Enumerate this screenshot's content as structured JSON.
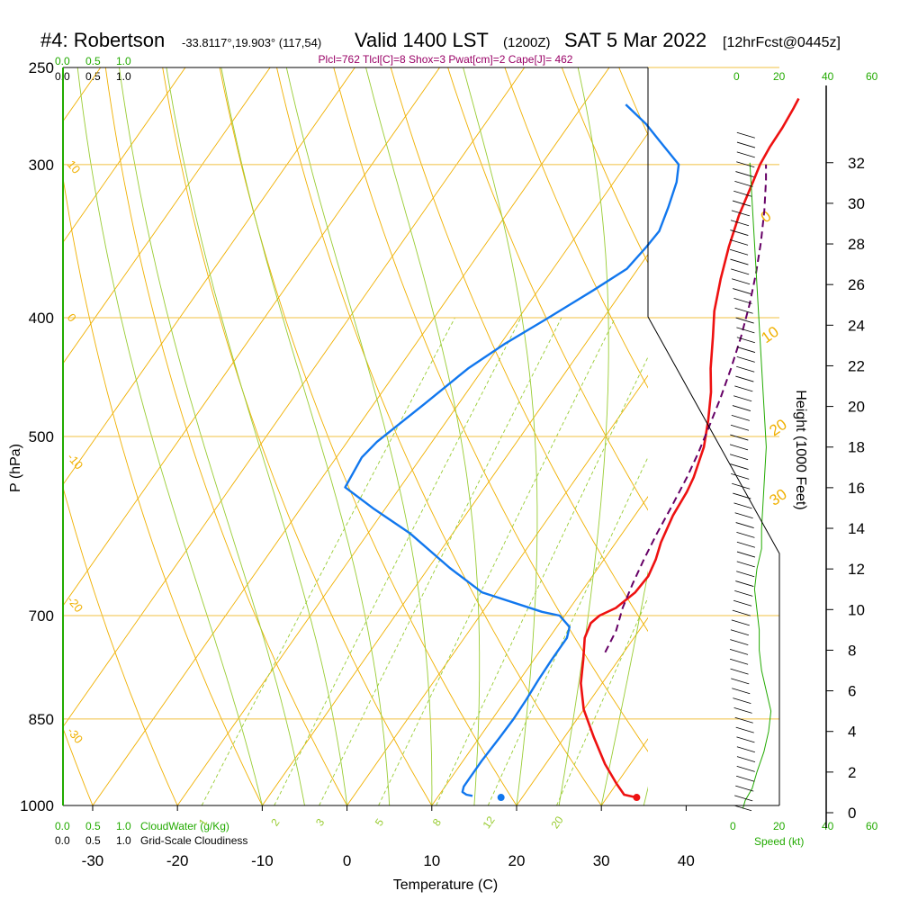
{
  "header": {
    "station": "#4: Robertson",
    "coords": "-33.8117°,19.903° (117,54)",
    "valid": "Valid 1400 LST",
    "zulu": "(1200Z)",
    "date": "SAT 5 Mar 2022",
    "forecast": "[12hrFcst@0445z]",
    "indices": "Plcl=762 Tlcl[C]=8 Shox=3 Pwat[cm]=2 Cape[J]= 462"
  },
  "scale_labels": {
    "cloudwater": [
      "0.0",
      "0.5",
      "1.0"
    ],
    "cloudiness": [
      "0.0",
      "0.5",
      "1.0"
    ],
    "cloudwater_caption": "CloudWater (g/Kg)",
    "cloudiness_caption": "Grid-Scale Cloudiness",
    "speed_ticks": [
      "0",
      "20",
      "40",
      "60"
    ],
    "speed_caption": "Speed (kt)"
  },
  "colors": {
    "isobar": "#f0c040",
    "dry_adiabat": "#f0b000",
    "moist_adiabat": "#99cc33",
    "mixing_ratio": "#99cc33",
    "temperature": "#ee1111",
    "dewpoint": "#1177ee",
    "parcel": "#660066",
    "indices": "#990066",
    "green_label": "#22aa00"
  },
  "chart_data": {
    "type": "line",
    "subtype": "skew-t log-p sounding",
    "xlabel": "Temperature (C)",
    "ylabel": "P (hPa)",
    "y2label": "Height (1000 Feet)",
    "x_ticks": [
      -30,
      -20,
      -10,
      0,
      10,
      20,
      30,
      40
    ],
    "p_ticks": [
      250,
      300,
      400,
      500,
      700,
      850,
      1000
    ],
    "height_ticks": [
      0,
      2,
      4,
      6,
      8,
      10,
      12,
      14,
      16,
      18,
      20,
      22,
      24,
      26,
      28,
      30,
      32
    ],
    "xlim": [
      -33.5,
      35.5
    ],
    "plim": [
      1000,
      250
    ],
    "series": [
      {
        "key": "temperature",
        "points": [
          [
            33.5,
            985
          ],
          [
            31.8,
            980
          ],
          [
            30,
            960
          ],
          [
            27,
            925
          ],
          [
            23.5,
            880
          ],
          [
            20,
            835
          ],
          [
            17.5,
            795
          ],
          [
            15.8,
            760
          ],
          [
            14.2,
            730
          ],
          [
            13.7,
            710
          ],
          [
            14.1,
            700
          ],
          [
            15.4,
            690
          ],
          [
            16.4,
            670
          ],
          [
            16.6,
            650
          ],
          [
            16.1,
            630
          ],
          [
            15.3,
            610
          ],
          [
            14.5,
            580
          ],
          [
            14.2,
            555
          ],
          [
            13.8,
            540
          ],
          [
            12.5,
            510
          ],
          [
            10.8,
            485
          ],
          [
            8.8,
            460
          ],
          [
            6.8,
            440
          ],
          [
            4.5,
            415
          ],
          [
            2.5,
            395
          ],
          [
            0.6,
            372
          ],
          [
            -1.1,
            350
          ],
          [
            -2.5,
            330
          ],
          [
            -3.6,
            310
          ],
          [
            -4.2,
            300
          ],
          [
            -4.5,
            290
          ],
          [
            -4.6,
            280
          ],
          [
            -4.9,
            270
          ],
          [
            -5.1,
            265
          ]
        ]
      },
      {
        "key": "dewpoint",
        "points": [
          [
            14,
            982
          ],
          [
            13.2,
            980
          ],
          [
            12.5,
            975
          ],
          [
            12.2,
            965
          ],
          [
            12.2,
            950
          ],
          [
            12.2,
            920
          ],
          [
            12.4,
            880
          ],
          [
            12.5,
            850
          ],
          [
            12.4,
            820
          ],
          [
            12.2,
            790
          ],
          [
            12.1,
            760
          ],
          [
            12.1,
            730
          ],
          [
            11.5,
            715
          ],
          [
            9.4,
            700
          ],
          [
            7,
            695
          ],
          [
            -1.7,
            670
          ],
          [
            -7.5,
            640
          ],
          [
            -15,
            600
          ],
          [
            -21.5,
            572
          ],
          [
            -26.5,
            550
          ],
          [
            -27,
            520
          ],
          [
            -26.5,
            505
          ],
          [
            -24,
            470
          ],
          [
            -21.8,
            440
          ],
          [
            -19.5,
            420
          ],
          [
            -16.5,
            400
          ],
          [
            -13.5,
            380
          ],
          [
            -11.3,
            365
          ],
          [
            -10.8,
            350
          ],
          [
            -10.6,
            340
          ],
          [
            -11.5,
            325
          ],
          [
            -12.6,
            310
          ],
          [
            -13.8,
            300
          ],
          [
            -18,
            287
          ],
          [
            -21,
            278
          ],
          [
            -25,
            268
          ]
        ]
      },
      {
        "key": "parcel",
        "points": [
          [
            17.8,
            750
          ],
          [
            17.3,
            720
          ],
          [
            16.2,
            690
          ],
          [
            15.4,
            660
          ],
          [
            14.7,
            630
          ],
          [
            14.1,
            600
          ],
          [
            13.6,
            570
          ],
          [
            13,
            540
          ],
          [
            12.3,
            515
          ],
          [
            11.4,
            490
          ],
          [
            10.4,
            465
          ],
          [
            9.2,
            440
          ],
          [
            7.8,
            415
          ],
          [
            6.1,
            390
          ],
          [
            4.3,
            368
          ],
          [
            2.3,
            347
          ],
          [
            0.1,
            327
          ],
          [
            -2.2,
            309
          ],
          [
            -3.5,
            300
          ]
        ]
      }
    ],
    "surface_points": [
      {
        "key": "temperature",
        "t": 33.5,
        "p": 985
      },
      {
        "key": "dewpoint",
        "t": 17.5,
        "p": 985
      }
    ],
    "isotherms": [
      -20,
      -10,
      0,
      10,
      20
    ],
    "isotherm_labels": [
      {
        "t": 0,
        "p": 335,
        "text": "0"
      },
      {
        "t": 10,
        "p": 420,
        "text": "10"
      },
      {
        "t": 20,
        "p": 500,
        "text": "20"
      },
      {
        "t": 30,
        "p": 570,
        "text": "30"
      }
    ],
    "dry_adiabat_labels": [
      {
        "p": 300,
        "text": "10"
      },
      {
        "p": 400,
        "text": "0"
      },
      {
        "p": 520,
        "text": "-10"
      },
      {
        "p": 680,
        "text": "-20"
      },
      {
        "p": 870,
        "text": "-30"
      }
    ],
    "mixing_ratios": [
      1,
      2,
      3,
      5,
      8,
      12,
      20
    ],
    "mixing_ratio_labels": [
      "1",
      "2",
      "3",
      "5",
      "8",
      "12",
      "20"
    ],
    "wind_profile": {
      "height_kft": [
        0.2,
        0.6,
        1.2,
        2,
        3,
        4,
        5,
        6,
        7,
        8,
        9,
        10,
        11,
        12,
        13,
        14,
        16,
        18,
        20,
        22,
        24,
        26,
        28,
        30,
        32
      ],
      "speed_kt": [
        4,
        5,
        8,
        10,
        13,
        15,
        16,
        14,
        12,
        11,
        11,
        10,
        9,
        10,
        12,
        12,
        13,
        14,
        13,
        12,
        11,
        10,
        9,
        8,
        7
      ]
    }
  }
}
